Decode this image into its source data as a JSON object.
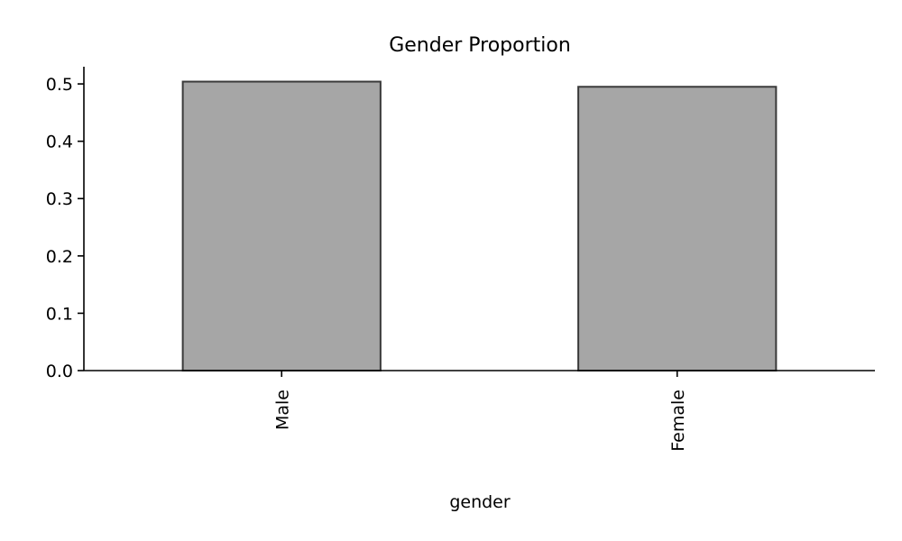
{
  "chart_data": {
    "type": "bar",
    "title": "Gender Proportion",
    "xlabel": "gender",
    "ylabel": "",
    "categories": [
      "Male",
      "Female"
    ],
    "values": [
      0.504,
      0.495
    ],
    "ylim": [
      0,
      0.53
    ],
    "yticks": [
      0.0,
      0.1,
      0.2,
      0.3,
      0.4,
      0.5
    ],
    "ytick_labels": [
      "0.0",
      "0.1",
      "0.2",
      "0.3",
      "0.4",
      "0.5"
    ],
    "grid": false,
    "legend": "none",
    "colors": {
      "bar_fill": "#a6a6a6",
      "bar_edge": "#3a3a3a",
      "axis": "#000000"
    }
  }
}
